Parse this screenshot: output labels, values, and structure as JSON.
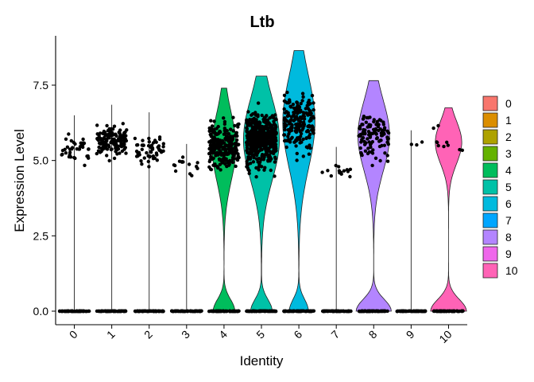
{
  "chart_data": {
    "type": "violin",
    "title": "Ltb",
    "xlabel": "Identity",
    "ylabel": "Expression Level",
    "ylim": [
      -0.3,
      9.1
    ],
    "yticks": [
      "0.0",
      "2.5",
      "5.0",
      "7.5"
    ],
    "ytick_values": [
      0,
      2.5,
      5,
      7.5
    ],
    "categories": [
      "0",
      "1",
      "2",
      "3",
      "4",
      "5",
      "6",
      "7",
      "8",
      "9",
      "10"
    ],
    "legend_position": "right",
    "groups": [
      {
        "name": "0",
        "color": "#F8766D",
        "max": 6.5,
        "zero_fraction": 0.96,
        "expr_low": 4.3,
        "expr_high": 6.5,
        "n_points": 38,
        "violin": false
      },
      {
        "name": "1",
        "color": "#DB8E00",
        "max": 6.85,
        "zero_fraction": 0.85,
        "expr_low": 4.5,
        "expr_high": 6.85,
        "n_points": 150,
        "violin": false
      },
      {
        "name": "2",
        "color": "#AEA200",
        "max": 6.6,
        "zero_fraction": 0.96,
        "expr_low": 4.1,
        "expr_high": 6.6,
        "n_points": 55,
        "violin": false
      },
      {
        "name": "3",
        "color": "#64B200",
        "max": 5.55,
        "zero_fraction": 0.98,
        "expr_low": 4.1,
        "expr_high": 5.5,
        "n_points": 14,
        "violin": false
      },
      {
        "name": "4",
        "color": "#00BD5C",
        "max": 7.4,
        "zero_fraction": 0.45,
        "expr_low": 3.7,
        "expr_high": 7.2,
        "n_points": 260,
        "violin": true,
        "violin_halfwidth": 0.32
      },
      {
        "name": "5",
        "color": "#00C1A7",
        "max": 7.8,
        "zero_fraction": 0.35,
        "expr_low": 3.6,
        "expr_high": 7.8,
        "n_points": 480,
        "violin": true,
        "violin_halfwidth": 0.48
      },
      {
        "name": "6",
        "color": "#00BADE",
        "max": 8.65,
        "zero_fraction": 0.35,
        "expr_low": 3.9,
        "expr_high": 8.65,
        "n_points": 190,
        "violin": true,
        "violin_halfwidth": 0.43
      },
      {
        "name": "7",
        "color": "#00A6FF",
        "max": 5.45,
        "zero_fraction": 0.98,
        "expr_low": 4.2,
        "expr_high": 5.1,
        "n_points": 14,
        "violin": false
      },
      {
        "name": "8",
        "color": "#B385FF",
        "max": 7.65,
        "zero_fraction": 0.5,
        "expr_low": 4.0,
        "expr_high": 7.65,
        "n_points": 110,
        "violin": true,
        "violin_halfwidth": 0.47
      },
      {
        "name": "9",
        "color": "#EF67EB",
        "max": 6.0,
        "zero_fraction": 0.99,
        "expr_low": 5.2,
        "expr_high": 6.0,
        "n_points": 3,
        "violin": false
      },
      {
        "name": "10",
        "color": "#FF63B6",
        "max": 6.75,
        "zero_fraction": 0.55,
        "expr_low": 4.5,
        "expr_high": 6.7,
        "n_points": 10,
        "violin": true,
        "violin_halfwidth": 0.48
      }
    ]
  }
}
